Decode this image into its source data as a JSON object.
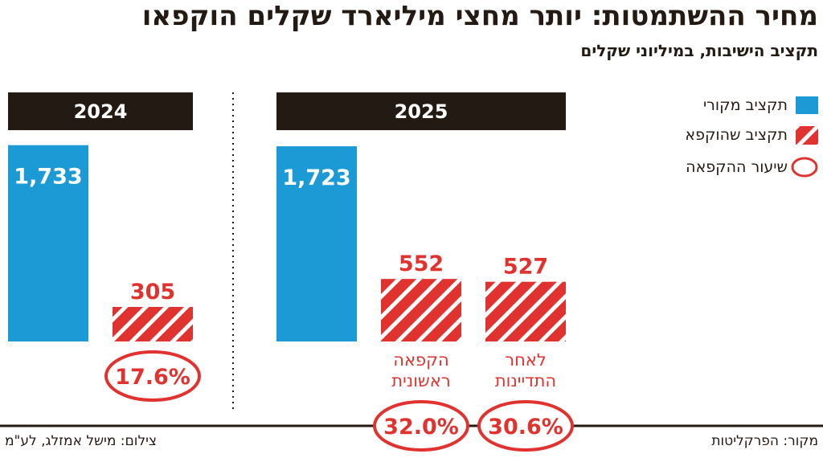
{
  "title": "מחיר ההשתמטות: יותר מחצי מיליארד שקלים הוקפאו",
  "subtitle": "תקציב הישיבות, במיליוני שקלים",
  "legend": [
    {
      "label": "תקציב מקורי",
      "kind": "original"
    },
    {
      "label": "תקציב שהוקפא",
      "kind": "frozen"
    },
    {
      "label": "שיעור ההקפאה",
      "kind": "rate"
    }
  ],
  "colors": {
    "original": "#1b9ad6",
    "frozen": "#e0322f",
    "header": "#231a14"
  },
  "source": "מקור: הפרקליטות",
  "credit": "צילום: מישל אמזלג, לע\"מ",
  "chart_data": {
    "type": "bar",
    "title": "מחיר ההשתמטות: יותר מחצי מיליארד שקלים הוקפאו",
    "ylabel": "תקציב הישיבות, במיליוני שקלים",
    "panels": [
      {
        "year": "2024",
        "bars": [
          {
            "series": "תקציב מקורי",
            "value": 1733,
            "label": "1,733"
          },
          {
            "series": "תקציב שהוקפא",
            "value": 305,
            "label": "305",
            "rate": "17.6%",
            "caption": []
          }
        ]
      },
      {
        "year": "2025",
        "bars": [
          {
            "series": "תקציב מקורי",
            "value": 1723,
            "label": "1,723"
          },
          {
            "series": "תקציב שהוקפא",
            "value": 552,
            "label": "552",
            "rate": "32.0%",
            "caption": [
              "הקפאה",
              "ראשונית"
            ]
          },
          {
            "series": "תקציב שהוקפא",
            "value": 527,
            "label": "527",
            "rate": "30.6%",
            "caption": [
              "לאחר",
              "התדיינות"
            ]
          }
        ]
      }
    ]
  }
}
